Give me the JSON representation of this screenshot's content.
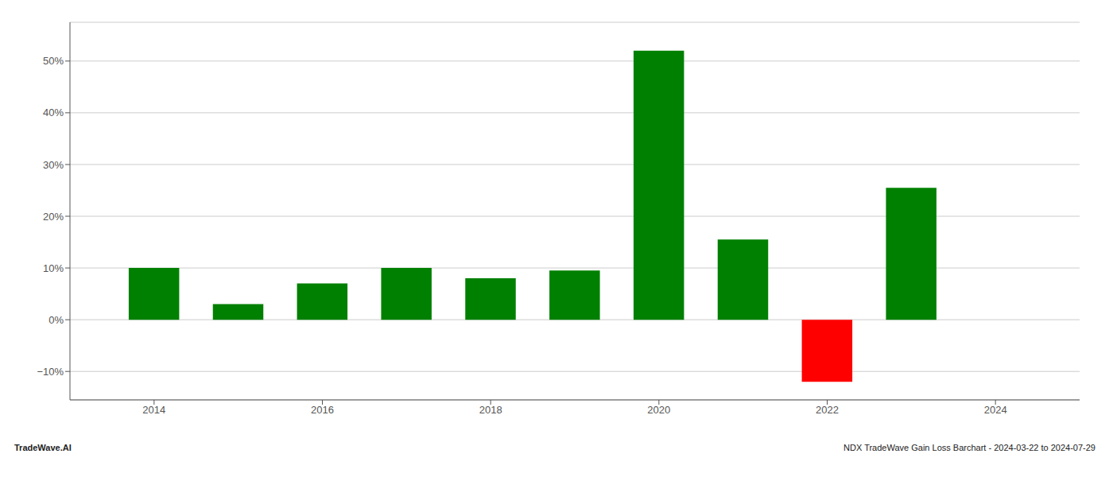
{
  "chart_data": {
    "type": "bar",
    "x": [
      2014,
      2015,
      2016,
      2017,
      2018,
      2019,
      2020,
      2021,
      2022,
      2023
    ],
    "values": [
      0.1,
      0.03,
      0.07,
      0.1,
      0.08,
      0.095,
      0.52,
      0.155,
      -0.12,
      0.255
    ],
    "colors": [
      "#008000",
      "#008000",
      "#008000",
      "#008000",
      "#008000",
      "#008000",
      "#008000",
      "#008000",
      "#ff0000",
      "#008000"
    ],
    "xlim": [
      2013.0,
      2025.0
    ],
    "xticks": [
      2014,
      2016,
      2018,
      2020,
      2022,
      2024
    ],
    "ylim": [
      -0.155,
      0.575
    ],
    "yticks": [
      {
        "value": -0.1,
        "label": "−10%"
      },
      {
        "value": 0.0,
        "label": "0%"
      },
      {
        "value": 0.1,
        "label": "10%"
      },
      {
        "value": 0.2,
        "label": "20%"
      },
      {
        "value": 0.3,
        "label": "30%"
      },
      {
        "value": 0.4,
        "label": "40%"
      },
      {
        "value": 0.5,
        "label": "50%"
      }
    ],
    "grid": true,
    "annotations": [
      "TradeWave.AI",
      "NDX TradeWave Gain Loss Barchart - 2024-03-22 to 2024-07-29"
    ]
  }
}
